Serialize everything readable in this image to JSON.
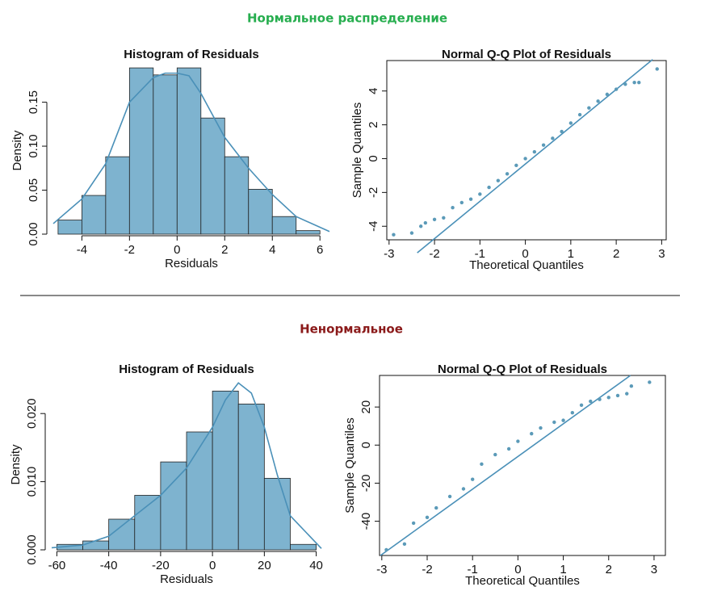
{
  "headings": [
    {
      "text": "Нормальное распределение",
      "color": "#27ae4f"
    },
    {
      "text": "Ненормальное",
      "color": "#8b1a1a"
    }
  ],
  "chart_data": [
    {
      "type": "histogram",
      "title": "Histogram of Residuals",
      "x_label": "Residuals",
      "y_label": "Density",
      "bins": [
        -5,
        -4,
        -3,
        -2,
        -1,
        0,
        1,
        2,
        3,
        4,
        5,
        6
      ],
      "values": [
        0.016,
        0.044,
        0.088,
        0.189,
        0.181,
        0.189,
        0.132,
        0.088,
        0.051,
        0.02,
        0.004
      ],
      "color": "#7eb3cf",
      "edge_color": "#222222",
      "density": {
        "x": [
          -5.2,
          -4,
          -3,
          -2,
          -1,
          -0.5,
          0,
          0.5,
          1,
          2,
          3,
          4,
          5,
          6.4
        ],
        "values": [
          0.012,
          0.04,
          0.08,
          0.15,
          0.178,
          0.183,
          0.183,
          0.18,
          0.16,
          0.11,
          0.075,
          0.045,
          0.02,
          0.003
        ],
        "color": "#4a90b8"
      },
      "xlim": [
        -5.2,
        6.4
      ],
      "ylim": [
        0,
        0.19
      ],
      "xticks": [
        -4,
        -2,
        0,
        2,
        4,
        6
      ],
      "yticks": [
        {
          "value": 0,
          "label": "0.00"
        },
        {
          "value": 0.05,
          "label": "0.05"
        },
        {
          "value": 0.1,
          "label": "0.10"
        },
        {
          "value": 0.15,
          "label": "0.15"
        }
      ]
    },
    {
      "type": "scatter",
      "title": "Normal Q-Q Plot of Residuals",
      "x_label": "Theoretical Quantiles",
      "y_label": "Sample Quantiles",
      "x": [
        -2.9,
        -2.5,
        -2.3,
        -2.2,
        -2.0,
        -1.8,
        -1.6,
        -1.4,
        -1.2,
        -1.0,
        -0.8,
        -0.6,
        -0.4,
        -0.2,
        0,
        0.2,
        0.4,
        0.6,
        0.8,
        1.0,
        1.2,
        1.4,
        1.6,
        1.8,
        2.0,
        2.2,
        2.4,
        2.5,
        2.9
      ],
      "values": [
        -4.5,
        -4.4,
        -4.0,
        -3.8,
        -3.6,
        -3.5,
        -2.9,
        -2.6,
        -2.4,
        -2.1,
        -1.7,
        -1.3,
        -0.9,
        -0.4,
        0.0,
        0.4,
        0.8,
        1.2,
        1.6,
        2.1,
        2.6,
        3.0,
        3.4,
        3.8,
        4.1,
        4.4,
        4.5,
        4.5,
        5.3
      ],
      "color": "#5b9ab8",
      "line": {
        "x": [
          -2.38,
          2.8
        ],
        "values": [
          -5.57,
          5.86
        ],
        "color": "#4a90b8"
      },
      "xlim": [
        -3.05,
        3.1
      ],
      "ylim": [
        -4.8,
        5.8
      ],
      "xticks": [
        -3,
        -2,
        -1,
        0,
        1,
        2,
        3
      ],
      "yticks": [
        -4,
        -2,
        0,
        2,
        4
      ]
    },
    {
      "type": "histogram",
      "title": "Histogram of Residuals",
      "x_label": "Residuals",
      "y_label": "Density",
      "bins": [
        -60,
        -50,
        -40,
        -30,
        -20,
        -10,
        0,
        10,
        20,
        30,
        40
      ],
      "values": [
        0.0008,
        0.0013,
        0.0045,
        0.008,
        0.0129,
        0.0173,
        0.0233,
        0.0214,
        0.0105,
        0.0008
      ],
      "color": "#7eb3cf",
      "edge_color": "#222222",
      "density": {
        "x": [
          -62,
          -50,
          -40,
          -30,
          -20,
          -10,
          0,
          5,
          10,
          15,
          20,
          25,
          30,
          42
        ],
        "values": [
          0.0003,
          0.0007,
          0.002,
          0.005,
          0.008,
          0.012,
          0.018,
          0.022,
          0.0245,
          0.023,
          0.018,
          0.011,
          0.005,
          0.0002
        ],
        "color": "#4a90b8"
      },
      "xlim": [
        -62,
        42
      ],
      "ylim": [
        0,
        0.025
      ],
      "xticks": [
        -60,
        -40,
        -20,
        0,
        20,
        40
      ],
      "yticks": [
        {
          "value": 0,
          "label": "0.000"
        },
        {
          "value": 0.01,
          "label": "0.010"
        },
        {
          "value": 0.02,
          "label": "0.020"
        }
      ]
    },
    {
      "type": "scatter",
      "title": "Normal Q-Q Plot of Residuals",
      "x_label": "Theoretical Quantiles",
      "y_label": "Sample Quantiles",
      "x": [
        -2.9,
        -2.5,
        -2.3,
        -2.0,
        -1.8,
        -1.5,
        -1.2,
        -1.0,
        -0.8,
        -0.5,
        -0.2,
        0,
        0.3,
        0.5,
        0.8,
        1.0,
        1.2,
        1.4,
        1.6,
        1.8,
        2.0,
        2.2,
        2.4,
        2.5,
        2.9
      ],
      "values": [
        -55,
        -52,
        -41,
        -38,
        -33,
        -27,
        -23,
        -18,
        -10,
        -5,
        -2,
        2,
        6,
        9,
        12,
        13,
        17,
        21,
        23,
        24,
        25,
        26,
        27,
        31,
        33
      ],
      "color": "#5b9ab8",
      "line": {
        "x": [
          -3.03,
          2.48
        ],
        "values": [
          -58,
          36.6
        ],
        "color": "#4a90b8"
      },
      "xlim": [
        -3.05,
        3.25
      ],
      "ylim": [
        -58,
        36.6
      ],
      "xticks": [
        -3,
        -2,
        -1,
        0,
        1,
        2,
        3
      ],
      "yticks": [
        -40,
        -20,
        0,
        20
      ]
    }
  ]
}
